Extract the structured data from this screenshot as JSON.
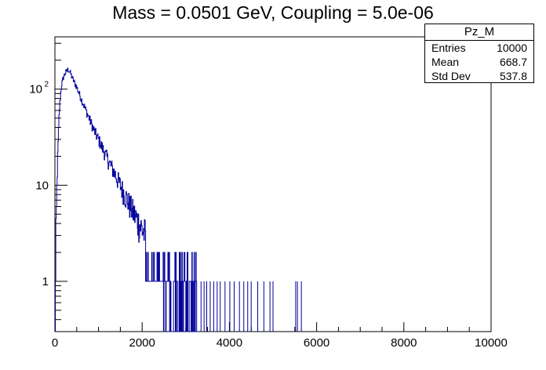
{
  "chart_data": {
    "type": "histogram",
    "title": "Mass = 0.0501 GeV, Coupling = 5.0e-06",
    "xlabel": "",
    "ylabel": "",
    "xlim": [
      0,
      10000
    ],
    "ylim": [
      0.3,
      350
    ],
    "yscale": "log",
    "x_ticks": [
      "0",
      "2000",
      "4000",
      "6000",
      "8000",
      "10000"
    ],
    "y_ticks": [
      {
        "base": "10",
        "exp": "2",
        "value": 100
      },
      {
        "base": "10",
        "exp": "",
        "value": 10
      },
      {
        "base": "1",
        "exp": "",
        "value": 1
      }
    ],
    "series_color": "#000099",
    "envelope": {
      "x": [
        0,
        50,
        100,
        150,
        200,
        250,
        300,
        350,
        400,
        500,
        600,
        700,
        800,
        900,
        1000,
        1200,
        1400,
        1600,
        1800,
        2000,
        2200,
        2400,
        2600,
        2800,
        3000,
        3200
      ],
      "y": [
        0.8,
        12,
        60,
        110,
        135,
        150,
        160,
        150,
        130,
        105,
        80,
        62,
        48,
        37,
        30,
        19,
        12.5,
        8,
        5.2,
        3.5,
        2.4,
        1.7,
        1.3,
        1.05,
        0.85,
        0.7
      ]
    },
    "sparse_entries_x": [
      3350,
      3420,
      3480,
      3560,
      3640,
      3720,
      3790,
      3900,
      4010,
      4110,
      4230,
      4330,
      4420,
      4500,
      4650,
      4790,
      4930,
      5000,
      5520,
      5560,
      5650
    ],
    "sparse_entries_y": 1,
    "grid": false
  },
  "stats": {
    "title": "Pz_M",
    "rows": [
      {
        "label": "Entries",
        "value": "10000"
      },
      {
        "label": "Mean",
        "value": "668.7"
      },
      {
        "label": "Std Dev",
        "value": "537.8"
      }
    ]
  }
}
